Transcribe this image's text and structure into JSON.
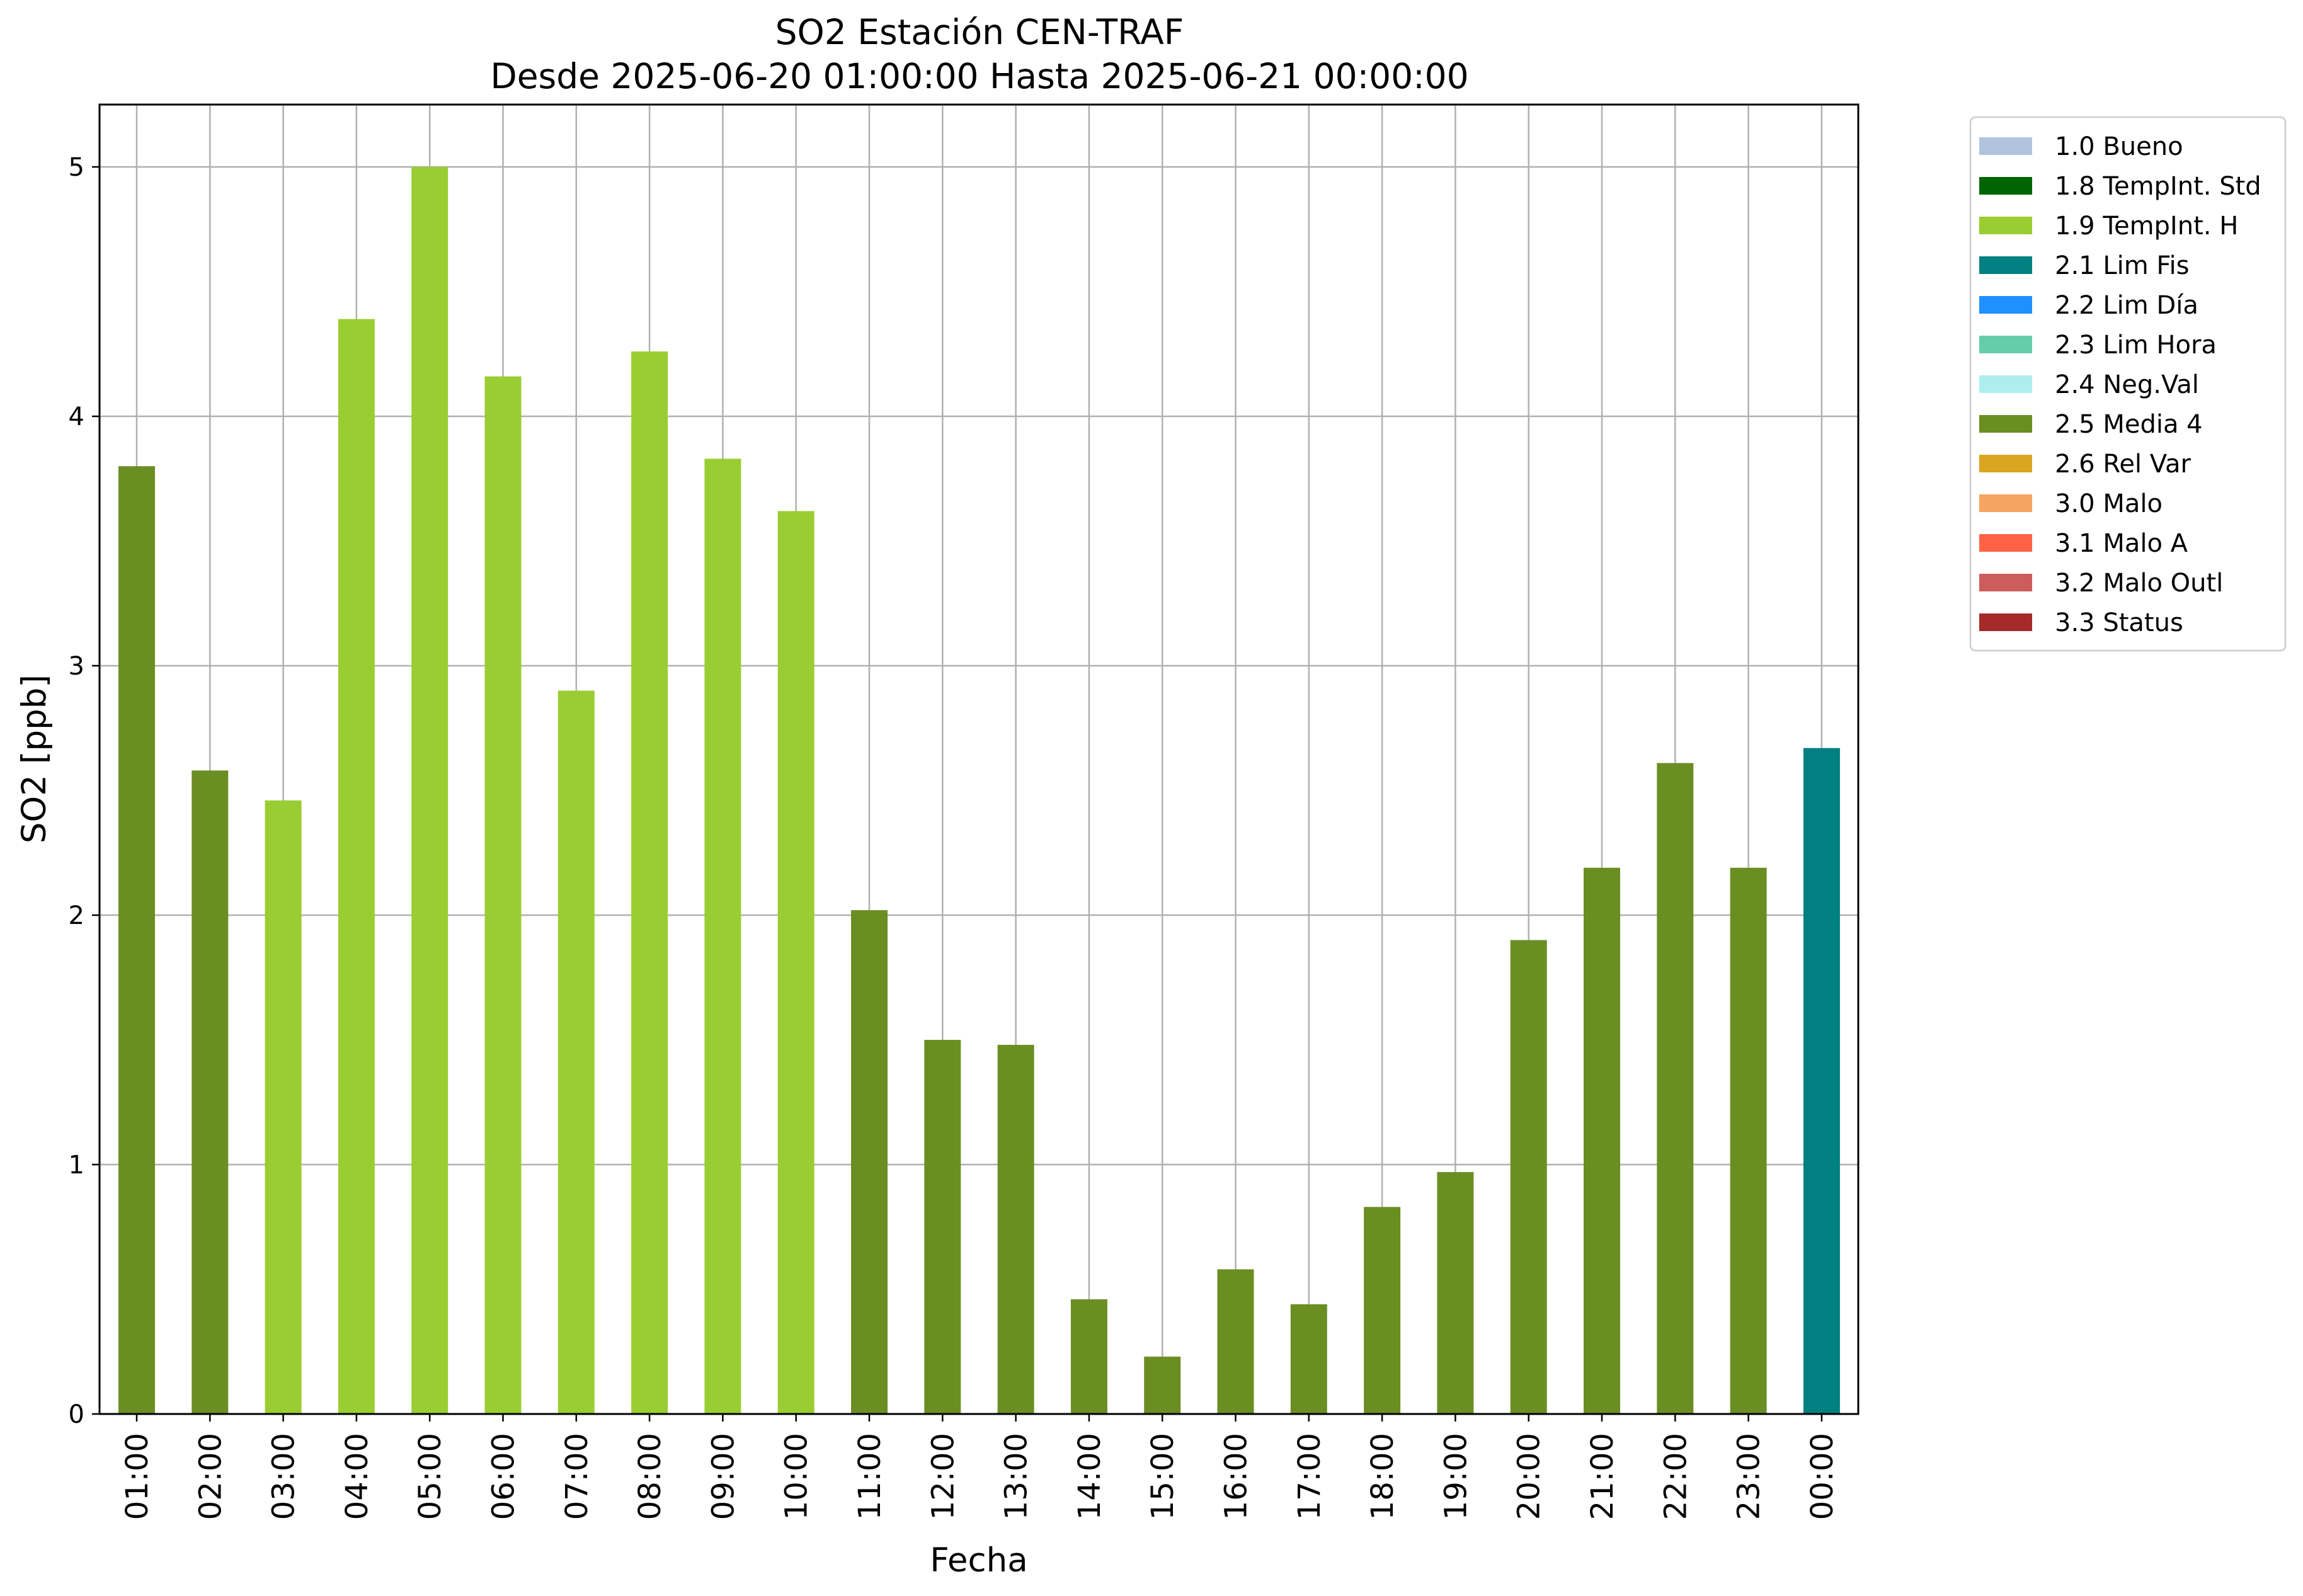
{
  "chart_data": {
    "type": "bar",
    "title": "SO2 Estación CEN-TRAF",
    "subtitle": "Desde 2025-06-20 01:00:00 Hasta 2025-06-21 00:00:00",
    "xlabel": "Fecha",
    "ylabel": "SO2 [ppb]",
    "ylim": [
      0,
      5.25
    ],
    "yticks": [
      0,
      1,
      2,
      3,
      4,
      5
    ],
    "grid": true,
    "legend_position": "outside-right",
    "categories": [
      "01:00",
      "02:00",
      "03:00",
      "04:00",
      "05:00",
      "06:00",
      "07:00",
      "08:00",
      "09:00",
      "10:00",
      "11:00",
      "12:00",
      "13:00",
      "14:00",
      "15:00",
      "16:00",
      "17:00",
      "18:00",
      "19:00",
      "20:00",
      "21:00",
      "22:00",
      "23:00",
      "00:00"
    ],
    "values": [
      3.8,
      2.58,
      2.46,
      4.39,
      5.0,
      4.16,
      2.9,
      4.26,
      3.83,
      3.62,
      2.02,
      1.5,
      1.48,
      0.46,
      0.23,
      0.58,
      0.44,
      0.83,
      0.97,
      1.9,
      2.19,
      2.61,
      2.19,
      2.67
    ],
    "flags": [
      "2.5 Media 4",
      "2.5 Media 4",
      "1.9 TempInt. H",
      "1.9 TempInt. H",
      "1.9 TempInt. H",
      "1.9 TempInt. H",
      "1.9 TempInt. H",
      "1.9 TempInt. H",
      "1.9 TempInt. H",
      "1.9 TempInt. H",
      "2.5 Media 4",
      "2.5 Media 4",
      "2.5 Media 4",
      "2.5 Media 4",
      "2.5 Media 4",
      "2.5 Media 4",
      "2.5 Media 4",
      "2.5 Media 4",
      "2.5 Media 4",
      "2.5 Media 4",
      "2.5 Media 4",
      "2.5 Media 4",
      "2.5 Media 4",
      "2.1 Lim Fis"
    ],
    "legend": [
      {
        "label": "1.0 Bueno",
        "color": "#b0c4de"
      },
      {
        "label": "1.8 TempInt. Std",
        "color": "#006400"
      },
      {
        "label": "1.9 TempInt. H",
        "color": "#9acd32"
      },
      {
        "label": "2.1 Lim Fis",
        "color": "#008080"
      },
      {
        "label": "2.2 Lim Día",
        "color": "#1e90ff"
      },
      {
        "label": "2.3 Lim Hora",
        "color": "#66cdaa"
      },
      {
        "label": "2.4 Neg.Val",
        "color": "#afeeee"
      },
      {
        "label": "2.5 Media 4",
        "color": "#6b8e23"
      },
      {
        "label": "2.6 Rel Var",
        "color": "#daa520"
      },
      {
        "label": "3.0 Malo",
        "color": "#f4a460"
      },
      {
        "label": "3.1 Malo A",
        "color": "#ff6347"
      },
      {
        "label": "3.2 Malo Outl",
        "color": "#cd5c5c"
      },
      {
        "label": "3.3 Status",
        "color": "#a52a2a"
      }
    ]
  }
}
